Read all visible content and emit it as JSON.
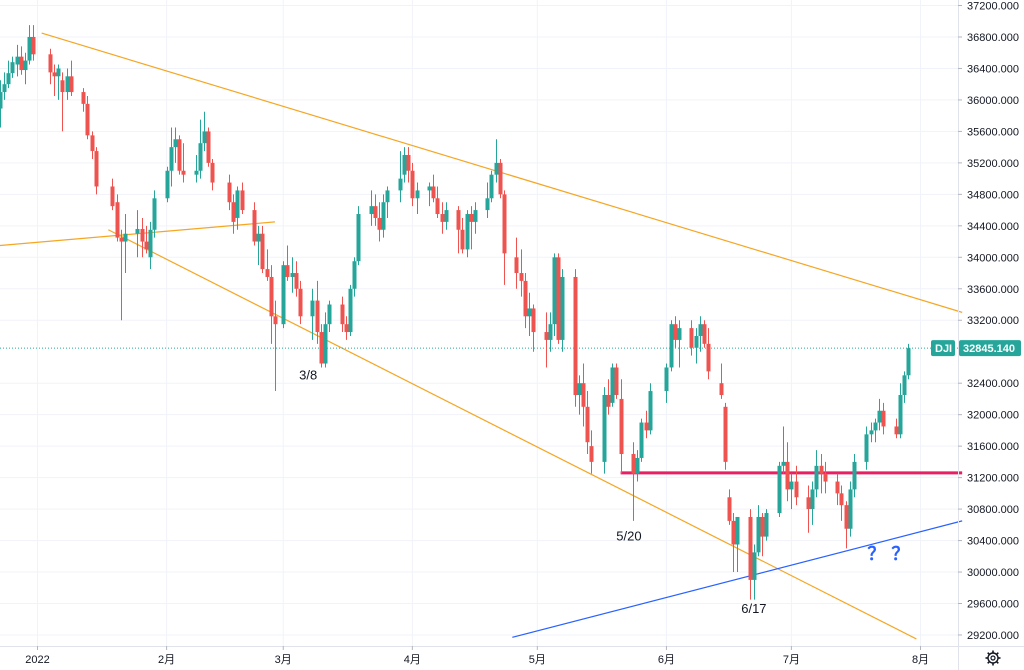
{
  "chart_data": {
    "type": "candlestick",
    "symbol": "DJI",
    "last_price": "32845.140",
    "colors": {
      "up": "#26a69a",
      "down": "#ef5350",
      "trendline": "#f5a623",
      "support": "#2962ff",
      "horizontal": "#e91e63",
      "price_line": "#26a69a"
    },
    "y_ticks": [
      "37200.000",
      "36800.000",
      "36400.000",
      "36000.000",
      "35600.000",
      "35200.000",
      "34800.000",
      "34400.000",
      "34000.000",
      "33600.000",
      "33200.000",
      "32400.000",
      "32000.000",
      "31600.000",
      "31200.000",
      "30800.000",
      "30400.000",
      "30000.000",
      "29600.000",
      "29200.000"
    ],
    "x_ticks": [
      {
        "label": "2022",
        "day": 0
      },
      {
        "label": "2月",
        "day": 31
      },
      {
        "label": "3月",
        "day": 59
      },
      {
        "label": "4月",
        "day": 90
      },
      {
        "label": "5月",
        "day": 120
      },
      {
        "label": "6月",
        "day": 151
      },
      {
        "label": "7月",
        "day": 181
      },
      {
        "label": "8月",
        "day": 212
      }
    ],
    "x_range_days": [
      -9,
      221
    ],
    "y_range": [
      29060,
      37270
    ],
    "candles": [
      [
        -9,
        35890,
        36250,
        35650,
        36100
      ],
      [
        -8,
        36100,
        36350,
        36000,
        36200
      ],
      [
        -7,
        36200,
        36500,
        36150,
        36340
      ],
      [
        -6,
        36340,
        36550,
        36280,
        36480
      ],
      [
        -5,
        36450,
        36700,
        36300,
        36550
      ],
      [
        -4,
        36550,
        36680,
        36320,
        36380
      ],
      [
        -3,
        36380,
        36600,
        36200,
        36500
      ],
      [
        -2,
        36500,
        36950,
        36450,
        36800
      ],
      [
        -1,
        36800,
        36950,
        36500,
        36580
      ],
      [
        3,
        36580,
        36650,
        36200,
        36350
      ],
      [
        4,
        36350,
        36450,
        36050,
        36300
      ],
      [
        5,
        36300,
        36450,
        36000,
        36400
      ],
      [
        6,
        36250,
        36350,
        35600,
        36100
      ],
      [
        7,
        36100,
        36400,
        36000,
        36300
      ],
      [
        8,
        36300,
        36500,
        36050,
        36100
      ],
      [
        11,
        36100,
        36150,
        35850,
        35950
      ],
      [
        12,
        35950,
        36050,
        35500,
        35550
      ],
      [
        13,
        35550,
        35600,
        35250,
        35350
      ],
      [
        14,
        35350,
        35400,
        34800,
        34900
      ],
      [
        18,
        34900,
        35000,
        34600,
        34650
      ],
      [
        19,
        34700,
        34800,
        34200,
        34250
      ],
      [
        20,
        34250,
        34350,
        33200,
        34200
      ],
      [
        21,
        34200,
        34550,
        33800,
        34300
      ],
      [
        24,
        34300,
        34600,
        34000,
        34360
      ],
      [
        25,
        34360,
        34500,
        34000,
        34200
      ],
      [
        26,
        34200,
        34400,
        34050,
        34100
      ],
      [
        27,
        34000,
        34450,
        33850,
        34350
      ],
      [
        28,
        34350,
        34850,
        34250,
        34750
      ],
      [
        31,
        34750,
        35150,
        34700,
        35100
      ],
      [
        32,
        35100,
        35650,
        34900,
        35400
      ],
      [
        33,
        35400,
        35650,
        35200,
        35500
      ],
      [
        34,
        35500,
        35550,
        35050,
        35100
      ],
      [
        35,
        35100,
        35450,
        34950,
        35050
      ],
      [
        38,
        35050,
        35300,
        34950,
        35100
      ],
      [
        39,
        35100,
        35750,
        35000,
        35450
      ],
      [
        40,
        35450,
        35850,
        35350,
        35600
      ],
      [
        41,
        35600,
        35650,
        35150,
        35200
      ],
      [
        42,
        35200,
        35250,
        34850,
        34950
      ],
      [
        46,
        34950,
        35050,
        34600,
        34700
      ],
      [
        47,
        34700,
        34800,
        34300,
        34450
      ],
      [
        48,
        34500,
        34900,
        34350,
        34850
      ],
      [
        49,
        34850,
        34950,
        34550,
        34600
      ],
      [
        52,
        34600,
        34700,
        34150,
        34200
      ],
      [
        53,
        34200,
        34400,
        33900,
        34300
      ],
      [
        54,
        34300,
        34400,
        33800,
        33850
      ],
      [
        55,
        33850,
        34100,
        33700,
        33750
      ],
      [
        56,
        33750,
        33900,
        32900,
        33250
      ],
      [
        57,
        33250,
        33450,
        32300,
        33150
      ],
      [
        59,
        33150,
        33950,
        33100,
        33900
      ],
      [
        60,
        33900,
        34150,
        33700,
        33750
      ],
      [
        61,
        33750,
        34000,
        33550,
        33800
      ],
      [
        62,
        33800,
        33950,
        33500,
        33600
      ],
      [
        63,
        33600,
        33700,
        33150,
        33250
      ],
      [
        66,
        33250,
        33600,
        32950,
        33450
      ],
      [
        67,
        33450,
        33700,
        32900,
        33050
      ],
      [
        68,
        33050,
        33150,
        32600,
        32650
      ],
      [
        69,
        32650,
        33300,
        32600,
        33150
      ],
      [
        70,
        33150,
        33450,
        33050,
        33400
      ],
      [
        73,
        33400,
        33500,
        33050,
        33150
      ],
      [
        74,
        33150,
        33250,
        32950,
        33050
      ],
      [
        75,
        33050,
        33650,
        33000,
        33600
      ],
      [
        76,
        33600,
        34000,
        33500,
        33950
      ],
      [
        77,
        33950,
        34650,
        33900,
        34550
      ],
      [
        80,
        34550,
        34850,
        34400,
        34650
      ],
      [
        81,
        34650,
        34800,
        34400,
        34500
      ],
      [
        82,
        34500,
        34700,
        34200,
        34350
      ],
      [
        83,
        34350,
        34800,
        34250,
        34700
      ],
      [
        84,
        34700,
        34900,
        34500,
        34850
      ],
      [
        87,
        34850,
        35350,
        34700,
        35000
      ],
      [
        88,
        35050,
        35400,
        34950,
        35300
      ],
      [
        89,
        35300,
        35400,
        34950,
        35100
      ],
      [
        90,
        35100,
        35200,
        34650,
        34750
      ],
      [
        91,
        34750,
        34950,
        34550,
        34850
      ],
      [
        94,
        34850,
        34950,
        34650,
        34900
      ],
      [
        95,
        34900,
        35050,
        34700,
        34750
      ],
      [
        96,
        34750,
        34900,
        34500,
        34550
      ],
      [
        97,
        34550,
        34700,
        34300,
        34450
      ],
      [
        98,
        34450,
        34700,
        34350,
        34600
      ],
      [
        101,
        34600,
        34650,
        34050,
        34350
      ],
      [
        102,
        34350,
        34500,
        34050,
        34100
      ],
      [
        103,
        34100,
        34600,
        34000,
        34550
      ],
      [
        104,
        34550,
        34650,
        34100,
        34450
      ],
      [
        105,
        34450,
        34700,
        34300,
        34600
      ],
      [
        108,
        34600,
        34950,
        34500,
        34750
      ],
      [
        109,
        34750,
        35100,
        34700,
        35050
      ],
      [
        110,
        35050,
        35500,
        34950,
        35200
      ],
      [
        111,
        35200,
        35250,
        34750,
        34800
      ],
      [
        112,
        34800,
        34850,
        33650,
        34050
      ],
      [
        115,
        34000,
        34250,
        33600,
        33800
      ],
      [
        116,
        33800,
        34100,
        33500,
        33700
      ],
      [
        117,
        33700,
        33800,
        33100,
        33250
      ],
      [
        118,
        33250,
        33550,
        33000,
        33350
      ],
      [
        119,
        33350,
        33400,
        32800,
        33050
      ],
      [
        122,
        33050,
        33300,
        32600,
        32950
      ],
      [
        123,
        32950,
        33300,
        32800,
        33150
      ],
      [
        124,
        33150,
        34050,
        33000,
        34000
      ],
      [
        125,
        34000,
        34050,
        32900,
        32950
      ],
      [
        126,
        32950,
        33850,
        32800,
        33750
      ],
      [
        129,
        33750,
        33850,
        32100,
        32250
      ],
      [
        130,
        32250,
        32500,
        32000,
        32400
      ],
      [
        131,
        32400,
        32650,
        31850,
        32100
      ],
      [
        132,
        32100,
        32300,
        31500,
        31650
      ],
      [
        133,
        31600,
        31800,
        31250,
        31400
      ],
      [
        136,
        31400,
        32350,
        31250,
        32250
      ],
      [
        137,
        32250,
        32450,
        32000,
        32100
      ],
      [
        138,
        32150,
        32650,
        32100,
        32600
      ],
      [
        139,
        32600,
        32650,
        32200,
        32250
      ],
      [
        140,
        32200,
        32450,
        31250,
        31500
      ],
      [
        143,
        31500,
        31650,
        30650,
        31250
      ],
      [
        144,
        31250,
        31550,
        31150,
        31450
      ],
      [
        145,
        31450,
        31950,
        31400,
        31900
      ],
      [
        146,
        31900,
        32050,
        31700,
        31800
      ],
      [
        147,
        31800,
        32400,
        31750,
        32300
      ],
      [
        151,
        32300,
        32650,
        32150,
        32600
      ],
      [
        152,
        32600,
        33200,
        32550,
        33150
      ],
      [
        153,
        33150,
        33250,
        32850,
        32950
      ],
      [
        154,
        32950,
        33200,
        32600,
        33100
      ],
      [
        157,
        33100,
        33200,
        32750,
        32850
      ],
      [
        158,
        32850,
        33100,
        32650,
        33000
      ],
      [
        159,
        33000,
        33250,
        32800,
        33150
      ],
      [
        160,
        33150,
        33200,
        32850,
        32900
      ],
      [
        161,
        32900,
        33100,
        32450,
        32550
      ],
      [
        164,
        32400,
        32650,
        32200,
        32250
      ],
      [
        165,
        32100,
        32150,
        31300,
        31400
      ],
      [
        166,
        30950,
        31050,
        30600,
        30650
      ],
      [
        167,
        30650,
        30750,
        30000,
        30350
      ],
      [
        168,
        30350,
        30700,
        30000,
        30700
      ],
      [
        171,
        30700,
        30800,
        29650,
        29900
      ],
      [
        172,
        29900,
        30350,
        29650,
        30250
      ],
      [
        173,
        30250,
        30850,
        30200,
        30700
      ],
      [
        174,
        30700,
        30750,
        30200,
        30450
      ],
      [
        175,
        30450,
        30800,
        30400,
        30750
      ],
      [
        178,
        30750,
        31400,
        30700,
        31350
      ],
      [
        179,
        31350,
        31850,
        31250,
        31400
      ],
      [
        180,
        31400,
        31650,
        30900,
        31050
      ],
      [
        181,
        31050,
        31250,
        30800,
        31150
      ],
      [
        182,
        31150,
        31350,
        30850,
        30950
      ],
      [
        185,
        30950,
        31100,
        30500,
        30800
      ],
      [
        186,
        30800,
        31150,
        30600,
        31050
      ],
      [
        187,
        31050,
        31550,
        30950,
        31350
      ],
      [
        188,
        31350,
        31500,
        31000,
        31250
      ],
      [
        189,
        31250,
        31400,
        31000,
        31150
      ],
      [
        192,
        31150,
        31250,
        30850,
        31000
      ],
      [
        193,
        31000,
        31100,
        30650,
        30850
      ],
      [
        194,
        30850,
        30900,
        30300,
        30550
      ],
      [
        195,
        30550,
        31150,
        30450,
        31050
      ],
      [
        196,
        31050,
        31500,
        30950,
        31400
      ],
      [
        199,
        31400,
        31850,
        31300,
        31750
      ],
      [
        200,
        31750,
        31900,
        31650,
        31800
      ],
      [
        201,
        31800,
        31950,
        31650,
        31900
      ],
      [
        202,
        31900,
        32200,
        31800,
        32050
      ],
      [
        203,
        32050,
        32150,
        31750,
        31850
      ],
      [
        206,
        31850,
        31950,
        31700,
        31750
      ],
      [
        207,
        31750,
        32400,
        31700,
        32250
      ],
      [
        208,
        32250,
        32550,
        32150,
        32500
      ],
      [
        209,
        32500,
        32900,
        32450,
        32845
      ]
    ],
    "trendlines": [
      {
        "type": "down",
        "from": [
          1,
          36850
        ],
        "to": [
          222,
          33300
        ]
      },
      {
        "type": "down",
        "from": [
          17,
          34350
        ],
        "to": [
          211,
          29150
        ]
      },
      {
        "type": "flat",
        "from": [
          -9,
          34150
        ],
        "to": [
          57,
          34450
        ]
      },
      {
        "type": "support",
        "from": [
          114,
          29170
        ],
        "to": [
          222,
          30650
        ]
      }
    ],
    "horizontal_level": {
      "y": 31260,
      "from_day": 140,
      "to_day": 222
    },
    "annotations": [
      {
        "text": "3/8",
        "day": 65,
        "y": 32450
      },
      {
        "text": "5/20",
        "day": 142,
        "y": 30400
      },
      {
        "text": "6/17",
        "day": 172,
        "y": 29480
      },
      {
        "text": "？？",
        "day": 205,
        "y": 30150
      }
    ]
  }
}
